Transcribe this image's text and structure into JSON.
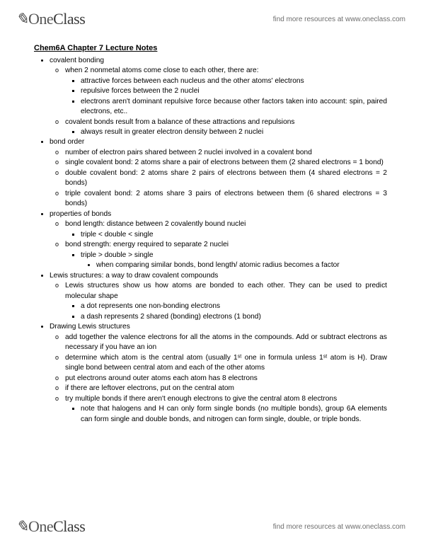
{
  "brand": {
    "one": "One",
    "class": "Class"
  },
  "tagline": "find more resources at www.oneclass.com",
  "title": "Chem6A Chapter 7 Lecture Notes",
  "sections": [
    {
      "label": "covalent bonding",
      "items": [
        {
          "text": "when 2 nonmetal atoms come close to each other, there are:",
          "sub": [
            "attractive forces between each nucleus and the other atoms' electrons",
            "repulsive forces between the 2 nuclei",
            "electrons aren't dominant repulsive force because other factors taken into account: spin, paired electrons, etc.."
          ]
        },
        {
          "text": "covalent bonds result from a balance of these attractions and repulsions",
          "sub": [
            "always result in greater electron density between 2 nuclei"
          ]
        }
      ]
    },
    {
      "label": "bond order",
      "items": [
        {
          "text": "number of electron pairs shared between 2 nuclei involved in a covalent bond"
        },
        {
          "text": "single covalent bond: 2 atoms share a pair of electrons between them (2 shared electrons = 1 bond)"
        },
        {
          "text": "double covalent bond: 2 atoms share 2 pairs of electrons between them (4 shared electrons = 2 bonds)"
        },
        {
          "text": "triple covalent bond: 2 atoms share 3 pairs of electrons between them (6 shared electrons = 3 bonds)"
        }
      ]
    },
    {
      "label": "properties of bonds",
      "items": [
        {
          "text": "bond length: distance between 2 covalently bound nuclei",
          "sub": [
            "triple < double < single"
          ]
        },
        {
          "text": "bond strength: energy required to separate 2 nuclei",
          "sub": [
            "triple > double > single",
            {
              "text": "",
              "sub4": [
                "when comparing similar bonds, bond length/ atomic radius becomes a factor"
              ]
            }
          ]
        }
      ]
    },
    {
      "label": "Lewis structures: a way to draw covalent compounds",
      "items": [
        {
          "text": "Lewis structures show us how atoms are bonded to each other. They can be used to predict molecular shape",
          "sub": [
            "a dot represents one non-bonding electrons",
            "a dash represents 2 shared (bonding) electrons (1 bond)"
          ]
        }
      ]
    },
    {
      "label": "Drawing Lewis structures",
      "items": [
        {
          "text": "add together the valence electrons for all the atoms in the compounds. Add or subtract electrons as necessary if you have an ion"
        },
        {
          "text": "determine which atom is the central atom (usually 1ˢᵗ one in formula unless 1ˢᵗ atom is H). Draw single bond between central atom and each of the other atoms"
        },
        {
          "text": "put electrons around outer atoms each atom has 8 electrons"
        },
        {
          "text": "if there are leftover electrons, put on the central atom"
        },
        {
          "text": "try multiple bonds if there aren't enough electrons to give the central atom 8 electrons",
          "sub": [
            "note that halogens and H can only form single bonds (no multiple bonds), group 6A elements can form single and double bonds, and nitrogen can form single, double, or triple bonds."
          ]
        }
      ]
    }
  ]
}
